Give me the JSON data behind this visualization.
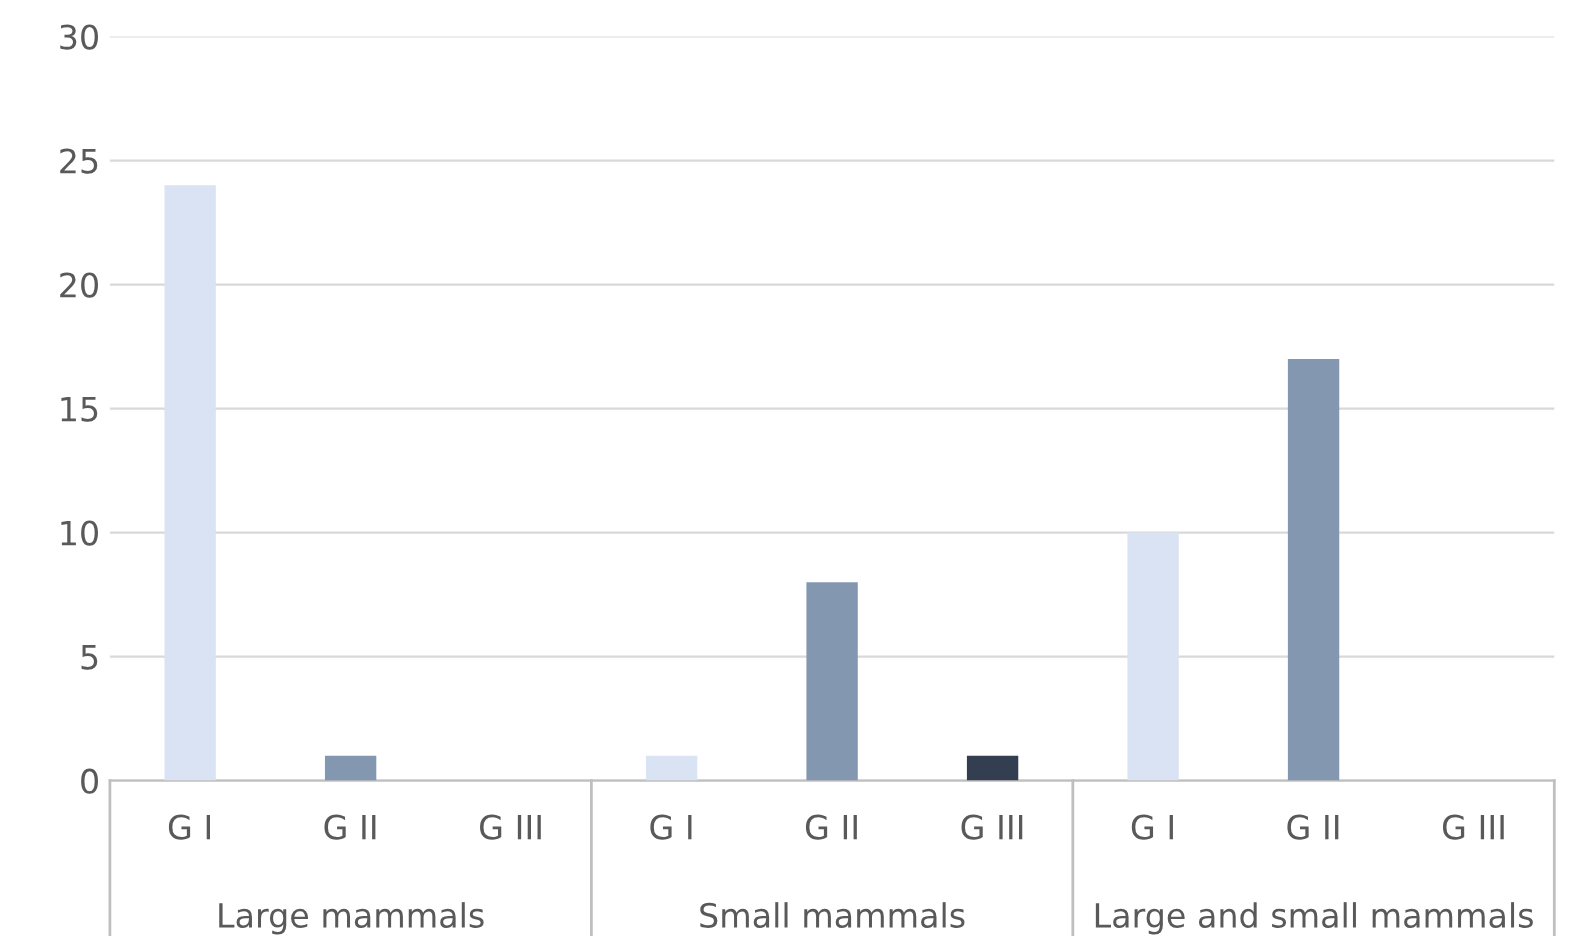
{
  "chart_data": {
    "type": "bar",
    "categories": [
      "G I",
      "G II",
      "G III",
      "G I",
      "G II",
      "G III",
      "G I",
      "G II",
      "G III"
    ],
    "values": [
      24,
      1,
      0,
      1,
      8,
      1,
      10,
      17,
      0
    ],
    "colors": [
      "#dae3f3",
      "#8497b0",
      "#333f50",
      "#dae3f3",
      "#8497b0",
      "#333f50",
      "#dae3f3",
      "#8497b0",
      "#333f50"
    ],
    "annotations": [
      "Large mammals",
      "Small mammals",
      "Large and small mammals"
    ],
    "ylim": [
      0,
      30
    ],
    "yticks": [
      0,
      5,
      10,
      15,
      20,
      25,
      30
    ],
    "grid": "y",
    "legend": false
  }
}
